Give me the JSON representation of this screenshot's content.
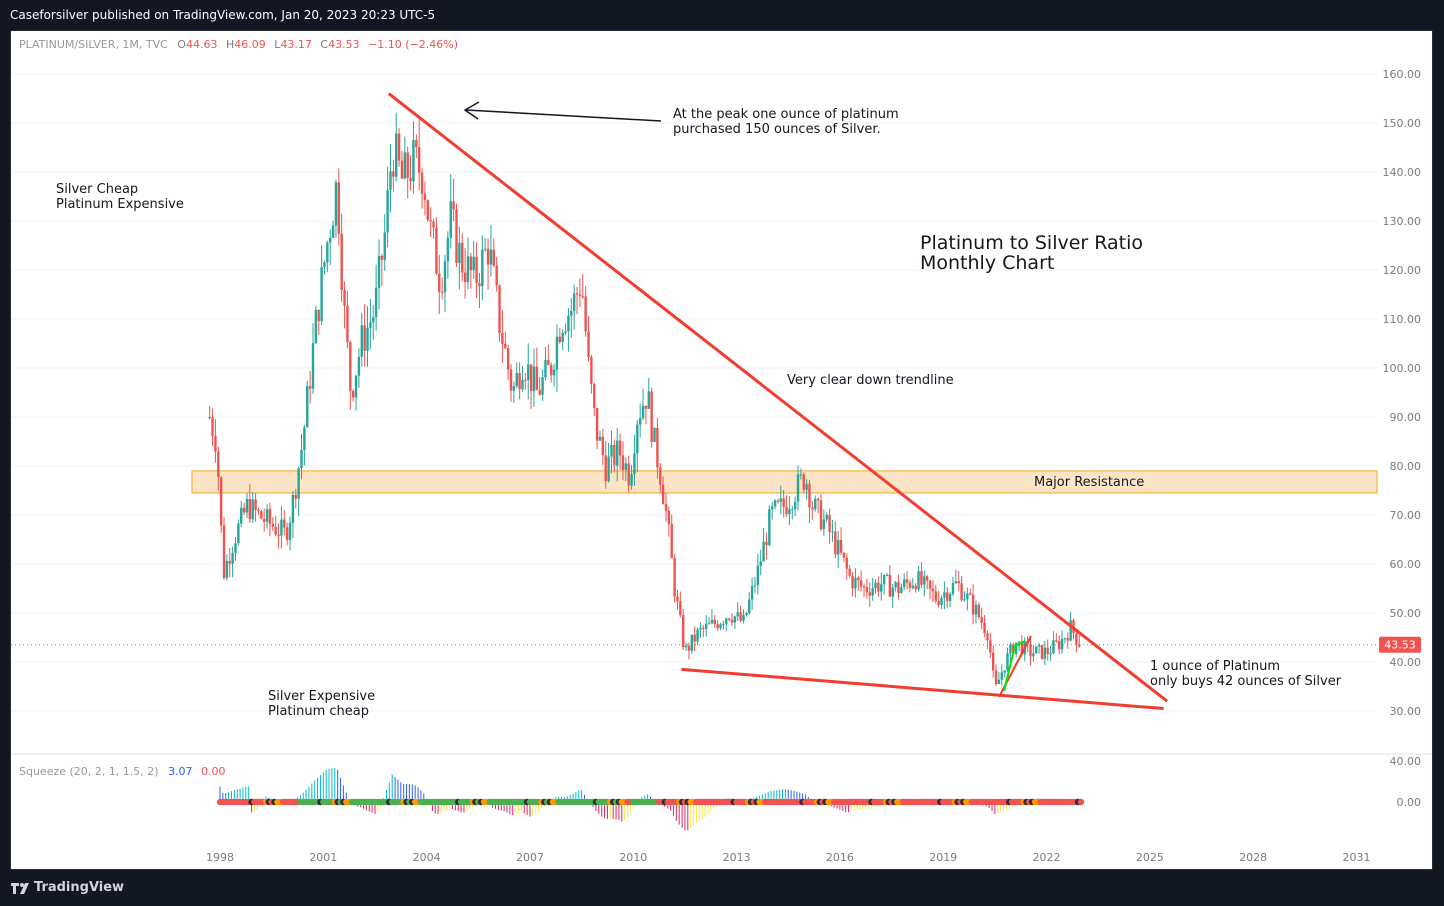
{
  "header": {
    "publisher": "Caseforsilver published on TradingView.com, Jan 20, 2023 20:23 UTC-5"
  },
  "legend": {
    "symbol": "PLATINUM/SILVER, 1M, TVC",
    "open_label": "O",
    "open": "44.63",
    "high_label": "H",
    "high": "46.09",
    "low_label": "L",
    "low": "43.17",
    "close_label": "C",
    "close": "43.53",
    "change": "−1.10 (−2.46%)"
  },
  "indicator": {
    "name": "Squeeze (20, 2, 1, 1.5, 2)",
    "value1": "3.07",
    "value2": "0.00"
  },
  "price_tag": "43.53",
  "annotations": {
    "peak_note_line1": "At the peak one ounce of platinum",
    "peak_note_line2": "purchased 150 ounces of Silver.",
    "silver_cheap_line1": "Silver Cheap",
    "silver_cheap_line2": "Platinum Expensive",
    "title_line1": "Platinum to Silver Ratio",
    "title_line2": "Monthly Chart",
    "trendline_note": "Very clear down trendline",
    "resistance_label": "Major Resistance",
    "silver_exp_line1": "Silver Expensive",
    "silver_exp_line2": "Platinum cheap",
    "now_line1": "1 ounce of Platinum",
    "now_line2": "only buys 42 ounces of Silver"
  },
  "footer": {
    "brand": "TradingView"
  },
  "colors": {
    "up": "#26a69a",
    "down": "#ef5350",
    "trendline": "#f23c2f",
    "zone_fill": "#fce5c7",
    "zone_border": "#f5a623",
    "squeeze_green": "#4caf50",
    "squeeze_black": "#2a2e39",
    "squeeze_orange": "#ff9800",
    "green_line": "#00e600"
  },
  "chart_data": {
    "type": "candlestick",
    "title": "Platinum to Silver Ratio",
    "subtitle": "Monthly Chart",
    "ylim": [
      25,
      165
    ],
    "y_ticks": [
      "160.00",
      "150.00",
      "140.00",
      "130.00",
      "120.00",
      "110.00",
      "100.00",
      "90.00",
      "80.00",
      "70.00",
      "60.00",
      "50.00",
      "40.00",
      "30.00"
    ],
    "x_ticks": [
      "1998",
      "2001",
      "2004",
      "2007",
      "2010",
      "2013",
      "2016",
      "2019",
      "2022",
      "2025",
      "2028",
      "2031"
    ],
    "x_tick_years": [
      1998,
      2001,
      2004,
      2007,
      2010,
      2013,
      2016,
      2019,
      2022,
      2025,
      2028,
      2031
    ],
    "indicator_ticks": [
      "40.00",
      "0.00"
    ],
    "last_close": 43.53,
    "price_path": [
      [
        1997.7,
        90
      ],
      [
        1997.9,
        85
      ],
      [
        1998.1,
        58
      ],
      [
        1998.4,
        65
      ],
      [
        1998.8,
        72
      ],
      [
        1999.1,
        70
      ],
      [
        1999.5,
        68
      ],
      [
        1999.9,
        66
      ],
      [
        2000.1,
        72
      ],
      [
        2000.4,
        85
      ],
      [
        2000.8,
        110
      ],
      [
        2001.1,
        125
      ],
      [
        2001.4,
        138
      ],
      [
        2001.6,
        112
      ],
      [
        2001.8,
        95
      ],
      [
        2002.1,
        105
      ],
      [
        2002.5,
        112
      ],
      [
        2002.8,
        128
      ],
      [
        2003.0,
        145
      ],
      [
        2003.3,
        138
      ],
      [
        2003.6,
        142
      ],
      [
        2003.9,
        140
      ],
      [
        2004.1,
        128
      ],
      [
        2004.4,
        118
      ],
      [
        2004.7,
        130
      ],
      [
        2005.0,
        122
      ],
      [
        2005.4,
        118
      ],
      [
        2005.8,
        125
      ],
      [
        2006.1,
        110
      ],
      [
        2006.5,
        95
      ],
      [
        2006.8,
        102
      ],
      [
        2007.2,
        95
      ],
      [
        2007.6,
        100
      ],
      [
        2007.9,
        110
      ],
      [
        2008.2,
        112
      ],
      [
        2008.5,
        118
      ],
      [
        2008.7,
        100
      ],
      [
        2008.9,
        88
      ],
      [
        2009.2,
        80
      ],
      [
        2009.6,
        83
      ],
      [
        2009.9,
        78
      ],
      [
        2010.1,
        90
      ],
      [
        2010.4,
        95
      ],
      [
        2010.6,
        85
      ],
      [
        2010.8,
        78
      ],
      [
        2011.0,
        68
      ],
      [
        2011.2,
        55
      ],
      [
        2011.5,
        42
      ],
      [
        2011.9,
        46
      ],
      [
        2012.4,
        48
      ],
      [
        2012.8,
        50
      ],
      [
        2013.2,
        48
      ],
      [
        2013.6,
        58
      ],
      [
        2014.0,
        70
      ],
      [
        2014.4,
        72
      ],
      [
        2014.7,
        75
      ],
      [
        2015.0,
        78
      ],
      [
        2015.2,
        72
      ],
      [
        2015.6,
        68
      ],
      [
        2016.0,
        62
      ],
      [
        2016.3,
        57
      ],
      [
        2016.7,
        55
      ],
      [
        2017.2,
        56
      ],
      [
        2017.7,
        55
      ],
      [
        2018.2,
        57
      ],
      [
        2018.8,
        53
      ],
      [
        2019.4,
        56
      ],
      [
        2019.9,
        51
      ],
      [
        2020.3,
        46
      ],
      [
        2020.5,
        34
      ],
      [
        2020.8,
        40
      ],
      [
        2021.1,
        44
      ],
      [
        2021.5,
        42
      ],
      [
        2022.0,
        42
      ],
      [
        2022.4,
        44
      ],
      [
        2022.7,
        47
      ],
      [
        2023.0,
        43.5
      ]
    ],
    "zones": [
      {
        "label": "Major Resistance",
        "from": 74.5,
        "to": 79
      }
    ],
    "trendlines": [
      {
        "name": "down trendline",
        "from": [
          2002.9,
          156
        ],
        "to": [
          2025.5,
          32
        ]
      },
      {
        "name": "support line",
        "from": [
          2011.4,
          38.5
        ],
        "to": [
          2025.4,
          30.5
        ]
      }
    ]
  }
}
